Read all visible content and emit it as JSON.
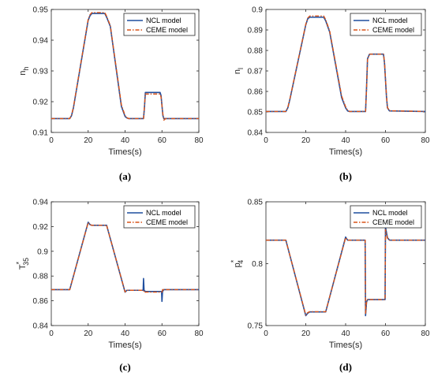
{
  "colors": {
    "ncl": "#1f4e9e",
    "ceme": "#d95319",
    "axis": "#262626"
  },
  "chart_data": [
    {
      "type": "line",
      "panel_label": "(a)",
      "xlabel": "Times(s)",
      "ylabel": "n",
      "ylabel_sub": "h",
      "ylabel_sup": "",
      "xlim": [
        0,
        80
      ],
      "ylim": [
        0.91,
        0.95
      ],
      "xticks": [
        "0",
        "20",
        "40",
        "60",
        "80"
      ],
      "yticks": [
        "0.91",
        "0.92",
        "0.93",
        "0.94",
        "0.95"
      ],
      "ytick_values": [
        0.91,
        0.92,
        0.93,
        0.94,
        0.95
      ],
      "legend": {
        "position": "top-right",
        "entries": [
          "NCL model",
          "CEME model"
        ]
      },
      "series": [
        {
          "name": "NCL model",
          "style": "solid",
          "x": [
            0,
            10,
            11,
            12,
            20,
            21,
            22,
            29,
            30,
            32,
            38,
            40,
            41,
            42,
            50,
            50.5,
            51,
            59,
            59.5,
            60.5,
            61,
            80
          ],
          "y": [
            0.9145,
            0.9145,
            0.9155,
            0.918,
            0.9465,
            0.948,
            0.9487,
            0.9487,
            0.9475,
            0.9445,
            0.9185,
            0.9152,
            0.9147,
            0.9145,
            0.9145,
            0.918,
            0.923,
            0.923,
            0.922,
            0.9155,
            0.9145,
            0.9145
          ]
        },
        {
          "name": "CEME model",
          "style": "dashdot",
          "x": [
            0,
            10,
            11,
            12,
            20,
            21,
            22,
            29,
            30,
            32,
            38,
            40,
            41,
            42,
            50,
            50.5,
            51,
            59,
            59.5,
            60.5,
            61,
            62,
            80
          ],
          "y": [
            0.9145,
            0.9145,
            0.9157,
            0.9182,
            0.9468,
            0.9483,
            0.949,
            0.949,
            0.9478,
            0.9448,
            0.919,
            0.9155,
            0.9148,
            0.9145,
            0.9145,
            0.9185,
            0.9225,
            0.9225,
            0.9215,
            0.916,
            0.914,
            0.9145,
            0.9145
          ]
        }
      ]
    },
    {
      "type": "line",
      "panel_label": "(b)",
      "xlabel": "Times(s)",
      "ylabel": "n",
      "ylabel_sub": "l",
      "ylabel_sup": "",
      "xlim": [
        0,
        80
      ],
      "ylim": [
        0.84,
        0.9
      ],
      "xticks": [
        "0",
        "20",
        "40",
        "60",
        "80"
      ],
      "yticks": [
        "0.84",
        "0.85",
        "0.86",
        "0.87",
        "0.88",
        "0.89",
        "0.9"
      ],
      "ytick_values": [
        0.84,
        0.85,
        0.86,
        0.87,
        0.88,
        0.89,
        0.9
      ],
      "legend": {
        "position": "top-right",
        "entries": [
          "NCL model",
          "CEME model"
        ]
      },
      "series": [
        {
          "name": "NCL model",
          "style": "solid",
          "x": [
            0,
            10,
            11,
            12,
            20,
            21,
            22,
            29,
            30,
            32,
            38,
            40,
            41,
            42,
            50,
            50.5,
            51,
            52,
            59,
            59.5,
            60.5,
            61,
            62,
            80
          ],
          "y": [
            0.8502,
            0.8502,
            0.852,
            0.856,
            0.8925,
            0.8955,
            0.8962,
            0.8962,
            0.8945,
            0.889,
            0.857,
            0.852,
            0.8505,
            0.8502,
            0.8502,
            0.862,
            0.876,
            0.8782,
            0.8782,
            0.874,
            0.8575,
            0.852,
            0.8505,
            0.8502
          ]
        },
        {
          "name": "CEME model",
          "style": "dashdot",
          "x": [
            0,
            10,
            11,
            12,
            20,
            21,
            22,
            29,
            30,
            32,
            38,
            40,
            41,
            42,
            50,
            50.5,
            51,
            52,
            59,
            59.5,
            60.5,
            61,
            62,
            80
          ],
          "y": [
            0.8502,
            0.8502,
            0.8522,
            0.8562,
            0.8928,
            0.8958,
            0.8968,
            0.8968,
            0.895,
            0.8895,
            0.8578,
            0.8525,
            0.8508,
            0.8502,
            0.8502,
            0.861,
            0.8755,
            0.8782,
            0.8782,
            0.8745,
            0.858,
            0.8522,
            0.8506,
            0.8502
          ]
        }
      ]
    },
    {
      "type": "line",
      "panel_label": "(c)",
      "xlabel": "Times(s)",
      "ylabel": "T",
      "ylabel_sub": "35",
      "ylabel_sup": "*",
      "xlim": [
        0,
        80
      ],
      "ylim": [
        0.84,
        0.94
      ],
      "xticks": [
        "0",
        "20",
        "40",
        "60",
        "80"
      ],
      "yticks": [
        "0.84",
        "0.86",
        "0.88",
        "0.9",
        "0.92",
        "0.94"
      ],
      "ytick_values": [
        0.84,
        0.86,
        0.88,
        0.9,
        0.92,
        0.94
      ],
      "legend": {
        "position": "top-right",
        "entries": [
          "NCL model",
          "CEME model"
        ]
      },
      "series": [
        {
          "name": "NCL model",
          "style": "solid",
          "x": [
            0,
            10,
            20,
            21,
            22,
            30,
            40,
            41,
            49.8,
            50,
            50.3,
            51,
            59.8,
            60,
            60.3,
            61,
            80
          ],
          "y": [
            0.869,
            0.869,
            0.9235,
            0.9215,
            0.921,
            0.921,
            0.867,
            0.8685,
            0.8685,
            0.878,
            0.8685,
            0.8675,
            0.8675,
            0.8595,
            0.8675,
            0.869,
            0.869
          ]
        },
        {
          "name": "CEME model",
          "style": "dashdot",
          "x": [
            0,
            10,
            20,
            21,
            22,
            30,
            40,
            41,
            50,
            50.5,
            51,
            60,
            60.5,
            61,
            80
          ],
          "y": [
            0.869,
            0.869,
            0.9232,
            0.9215,
            0.921,
            0.921,
            0.8672,
            0.8685,
            0.8685,
            0.8665,
            0.867,
            0.867,
            0.87,
            0.869,
            0.869
          ]
        }
      ]
    },
    {
      "type": "line",
      "panel_label": "(d)",
      "xlabel": "Times(s)",
      "ylabel": "p",
      "ylabel_sub": "4",
      "ylabel_sup": "*",
      "xlim": [
        0,
        80
      ],
      "ylim": [
        0.75,
        0.85
      ],
      "xticks": [
        "0",
        "20",
        "40",
        "60",
        "80"
      ],
      "yticks": [
        "0.75",
        "0.8",
        "0.85"
      ],
      "ytick_values": [
        0.75,
        0.8,
        0.85
      ],
      "legend": {
        "position": "top-right",
        "entries": [
          "NCL model",
          "CEME model"
        ]
      },
      "series": [
        {
          "name": "NCL model",
          "style": "solid",
          "x": [
            0,
            10,
            20,
            21,
            22,
            30,
            40,
            41,
            49.8,
            50,
            50.5,
            51,
            59.8,
            60,
            61,
            62,
            80
          ],
          "y": [
            0.819,
            0.819,
            0.758,
            0.76,
            0.761,
            0.761,
            0.8215,
            0.819,
            0.819,
            0.758,
            0.769,
            0.771,
            0.771,
            0.8295,
            0.821,
            0.819,
            0.819
          ]
        },
        {
          "name": "CEME model",
          "style": "dashdot",
          "x": [
            0,
            10,
            20,
            21,
            22,
            30,
            40,
            41,
            49.8,
            50,
            50.5,
            51,
            59.8,
            60,
            61,
            62,
            80
          ],
          "y": [
            0.819,
            0.819,
            0.7585,
            0.7605,
            0.7612,
            0.7612,
            0.821,
            0.819,
            0.819,
            0.7595,
            0.769,
            0.771,
            0.771,
            0.8275,
            0.8205,
            0.819,
            0.819
          ]
        }
      ]
    }
  ]
}
